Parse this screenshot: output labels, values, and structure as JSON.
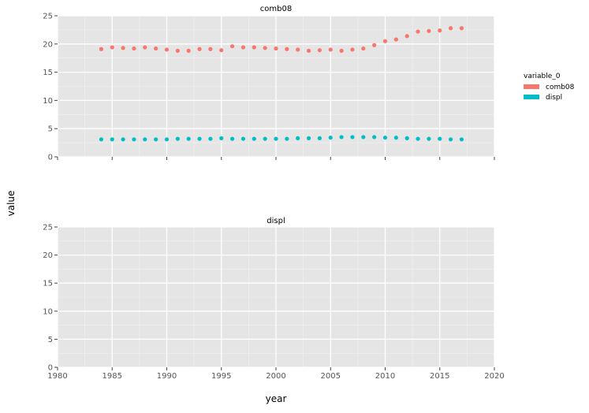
{
  "chart_data": {
    "type": "scatter",
    "xlabel": "year",
    "ylabel": "value",
    "xlim": [
      1980,
      2020
    ],
    "ylim": [
      0,
      25
    ],
    "x_ticks": [
      1980,
      1985,
      1990,
      1995,
      2000,
      2005,
      2010,
      2015,
      2020
    ],
    "y_ticks": [
      0,
      5,
      10,
      15,
      20,
      25
    ],
    "grid": true,
    "legend_position": "right",
    "legend": {
      "title": "variable_0",
      "entries": [
        {
          "name": "comb08",
          "color": "#F8766D"
        },
        {
          "name": "displ",
          "color": "#00BFC4"
        }
      ]
    },
    "x": [
      1984,
      1985,
      1986,
      1987,
      1988,
      1989,
      1990,
      1991,
      1992,
      1993,
      1994,
      1995,
      1996,
      1997,
      1998,
      1999,
      2000,
      2001,
      2002,
      2003,
      2004,
      2005,
      2006,
      2007,
      2008,
      2009,
      2010,
      2011,
      2012,
      2013,
      2014,
      2015,
      2016,
      2017
    ],
    "panels": [
      {
        "title": "comb08",
        "series": [
          {
            "name": "comb08",
            "color": "#F8766D",
            "values": [
              19.1,
              19.4,
              19.3,
              19.2,
              19.4,
              19.2,
              19.0,
              18.8,
              18.8,
              19.1,
              19.1,
              18.9,
              19.6,
              19.4,
              19.4,
              19.3,
              19.2,
              19.1,
              19.0,
              18.8,
              18.9,
              19.0,
              18.8,
              19.0,
              19.2,
              19.8,
              20.5,
              20.8,
              21.4,
              22.2,
              22.3,
              22.4,
              22.8,
              22.8
            ]
          },
          {
            "name": "displ",
            "color": "#00BFC4",
            "values": [
              3.1,
              3.1,
              3.1,
              3.1,
              3.1,
              3.1,
              3.1,
              3.2,
              3.2,
              3.2,
              3.2,
              3.3,
              3.2,
              3.2,
              3.2,
              3.2,
              3.2,
              3.2,
              3.3,
              3.3,
              3.3,
              3.4,
              3.5,
              3.5,
              3.5,
              3.5,
              3.4,
              3.4,
              3.3,
              3.2,
              3.2,
              3.2,
              3.1,
              3.1
            ]
          }
        ]
      },
      {
        "title": "displ",
        "series": []
      }
    ]
  }
}
